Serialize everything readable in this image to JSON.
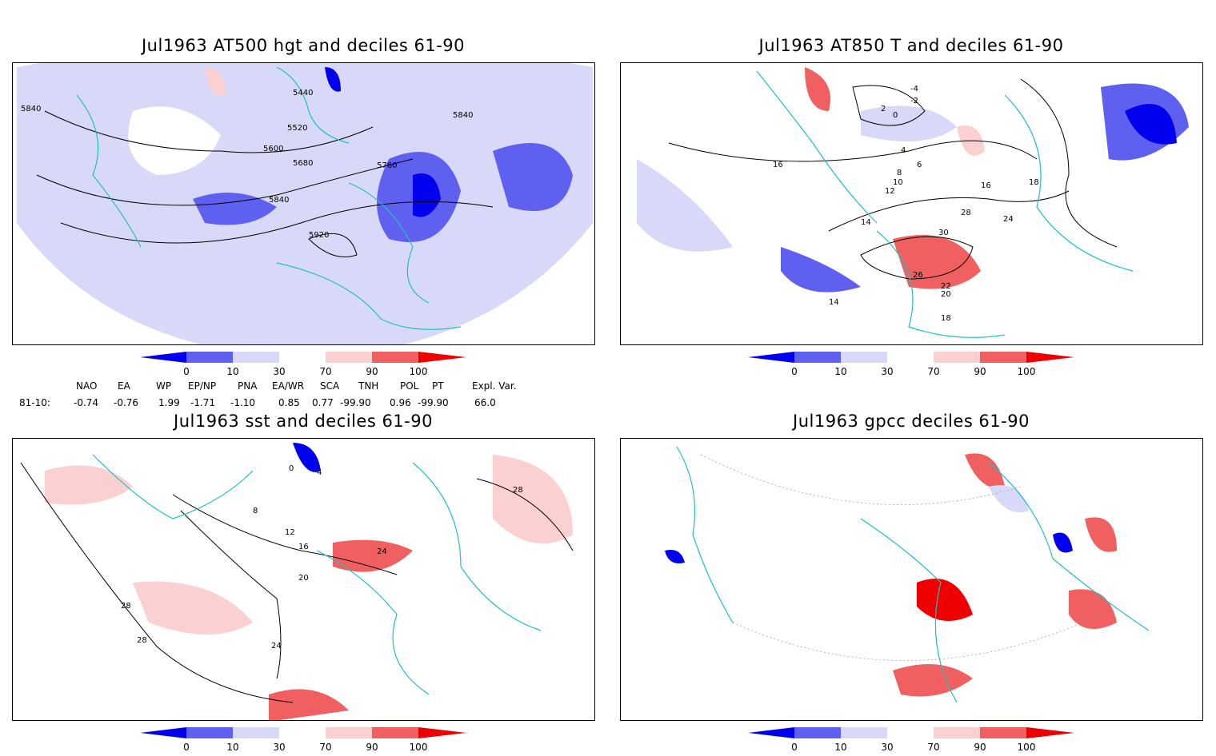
{
  "panels": [
    {
      "title": "Jul1963 AT500 hgt and deciles 61-90",
      "contour_labels": [
        "5440",
        "5520",
        "5600",
        "5680",
        "5760",
        "5840",
        "5840",
        "5840",
        "5920"
      ]
    },
    {
      "title": "Jul1963 AT850 T and deciles 61-90",
      "contour_labels": [
        "-4",
        "-2",
        "0",
        "2",
        "4",
        "6",
        "8",
        "10",
        "12",
        "14",
        "14",
        "16",
        "16",
        "18",
        "18",
        "20",
        "22",
        "24",
        "26",
        "28",
        "30"
      ]
    },
    {
      "title": "Jul1963 sst and deciles 61-90",
      "contour_labels": [
        "0",
        "4",
        "8",
        "12",
        "16",
        "20",
        "24",
        "24",
        "28",
        "28",
        "28"
      ]
    },
    {
      "title": "Jul1963 gpcc deciles 61-90",
      "contour_labels": []
    }
  ],
  "colorbar": {
    "ticks": [
      "0",
      "10",
      "30",
      "70",
      "90",
      "100"
    ],
    "colors": [
      "#0000ee",
      "#6060f0",
      "#d8d8f8",
      "#ffffff",
      "#fbd0d0",
      "#f06060",
      "#ee0000"
    ]
  },
  "indices": {
    "headers": [
      "NAO",
      "EA",
      "WP",
      "EP/NP",
      "PNA",
      "EA/WR",
      "SCA",
      "TNH",
      "POL",
      "PT",
      "Expl. Var."
    ],
    "row_label": "81-10:",
    "values": [
      "-0.74",
      "-0.76",
      "1.99",
      "-1.71",
      "-1.10",
      "0.85",
      "0.77",
      "-99.90",
      "0.96",
      "-99.90",
      "66.0"
    ]
  },
  "colors": {
    "coast": "#20c0c0",
    "frame": "#000000"
  }
}
